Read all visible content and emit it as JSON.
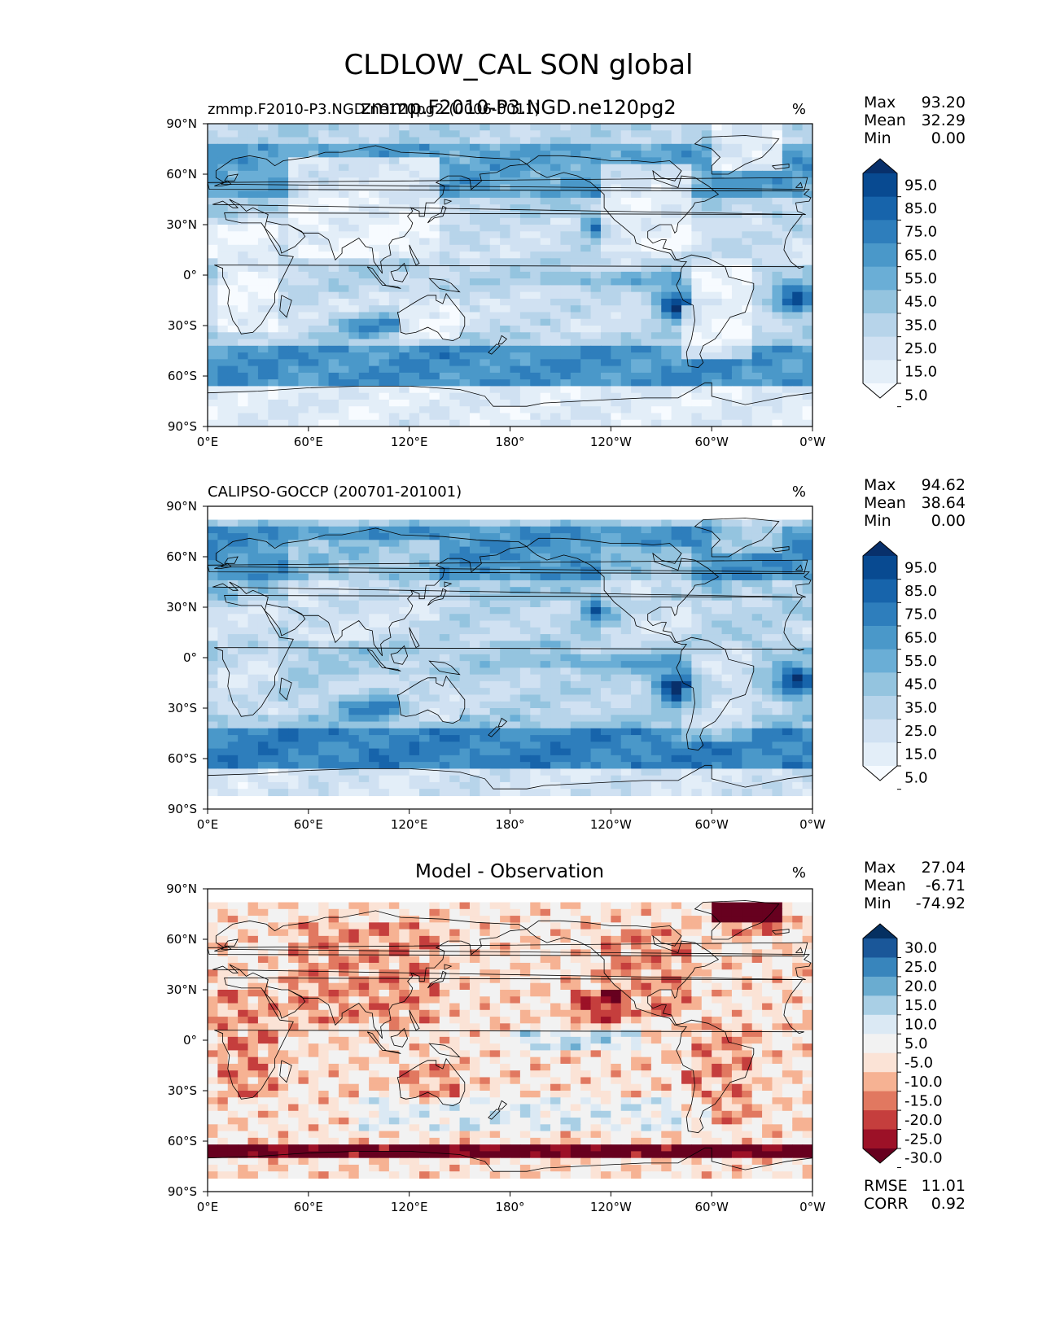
{
  "figure": {
    "title": "CLDLOW_CAL SON global",
    "subtitle": "zmmp.F2010-P3.NGD.ne120pg2"
  },
  "colors": {
    "blues": [
      "#f7fbff",
      "#e3eef8",
      "#d0e1f2",
      "#b7d4ea",
      "#94c4df",
      "#6aaed6",
      "#4a98c9",
      "#2e7ebc",
      "#1764ab",
      "#084a91",
      "#08306b"
    ],
    "diverging": [
      "#67001f",
      "#9c1127",
      "#c53e3d",
      "#e17860",
      "#f6b293",
      "#fbe3d6",
      "#f2f2f2",
      "#dbe9f4",
      "#a9cfe5",
      "#6aacd0",
      "#3885bc",
      "#1a5799",
      "#053061"
    ],
    "coastline": "#000000"
  },
  "chart_data": [
    {
      "type": "heatmap",
      "name": "test",
      "title_left": "zmmp.F2010-P3.NGD.ne120pg2 (0006-0011)",
      "title_center": "",
      "units": "%",
      "stats": [
        {
          "label": "Max",
          "value": "93.20"
        },
        {
          "label": "Mean",
          "value": "32.29"
        },
        {
          "label": "Min",
          "value": "0.00"
        }
      ],
      "footer": [],
      "colorbar_type": "sequential",
      "colorbar_levels": [
        "95.0",
        "85.0",
        "75.0",
        "65.0",
        "55.0",
        "45.0",
        "35.0",
        "25.0",
        "15.0",
        "5.0"
      ],
      "xticks": [
        "0°E",
        "60°E",
        "120°E",
        "180°",
        "120°W",
        "60°W",
        "0°W"
      ],
      "yticks": [
        "90°N",
        "60°N",
        "30°N",
        "0°",
        "30°S",
        "60°S",
        "90°S"
      ],
      "xlim": [
        0,
        360
      ],
      "ylim": [
        -90,
        90
      ],
      "data_lat_range": [
        -90,
        90
      ]
    },
    {
      "type": "heatmap",
      "name": "reference",
      "title_left": "CALIPSO-GOCCP (200701-201001)",
      "title_center": "",
      "units": "%",
      "stats": [
        {
          "label": "Max",
          "value": "94.62"
        },
        {
          "label": "Mean",
          "value": "38.64"
        },
        {
          "label": "Min",
          "value": "0.00"
        }
      ],
      "footer": [],
      "colorbar_type": "sequential",
      "colorbar_levels": [
        "95.0",
        "85.0",
        "75.0",
        "65.0",
        "55.0",
        "45.0",
        "35.0",
        "25.0",
        "15.0",
        "5.0"
      ],
      "xticks": [
        "0°E",
        "60°E",
        "120°E",
        "180°",
        "120°W",
        "60°W",
        "0°W"
      ],
      "yticks": [
        "90°N",
        "60°N",
        "30°N",
        "0°",
        "30°S",
        "60°S",
        "90°S"
      ],
      "xlim": [
        0,
        360
      ],
      "ylim": [
        -90,
        90
      ],
      "data_lat_range": [
        -82,
        82
      ]
    },
    {
      "type": "heatmap",
      "name": "difference",
      "title_left": "",
      "title_center": "Model - Observation",
      "units": "%",
      "stats": [
        {
          "label": "Max",
          "value": "27.04"
        },
        {
          "label": "Mean",
          "value": "-6.71"
        },
        {
          "label": "Min",
          "value": "-74.92"
        }
      ],
      "footer": [
        {
          "label": "RMSE",
          "value": "11.01"
        },
        {
          "label": "CORR",
          "value": "0.92"
        }
      ],
      "colorbar_type": "diverging",
      "colorbar_levels": [
        "30.0",
        "25.0",
        "20.0",
        "15.0",
        "10.0",
        "5.0",
        "-5.0",
        "-10.0",
        "-15.0",
        "-20.0",
        "-25.0",
        "-30.0"
      ],
      "xticks": [
        "0°E",
        "60°E",
        "120°E",
        "180°",
        "120°W",
        "60°W",
        "0°W"
      ],
      "yticks": [
        "90°N",
        "60°N",
        "30°N",
        "0°",
        "30°S",
        "60°S",
        "90°S"
      ],
      "xlim": [
        0,
        360
      ],
      "ylim": [
        -90,
        90
      ],
      "data_lat_range": [
        -82,
        82
      ]
    }
  ]
}
